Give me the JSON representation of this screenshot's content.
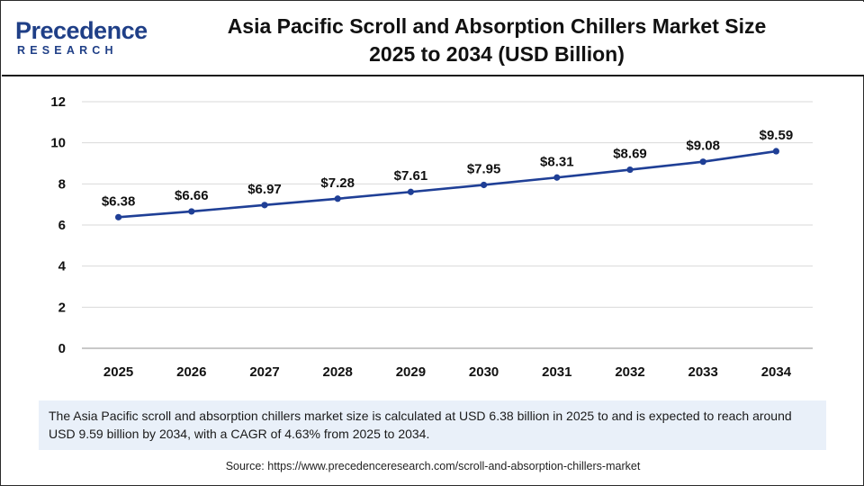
{
  "brand": {
    "name_top": "Precedence",
    "name_bottom": "RESEARCH",
    "color": "#1f3f87"
  },
  "header": {
    "title_line1": "Asia Pacific Scroll and Absorption Chillers Market Size",
    "title_line2": "2025 to 2034 (USD Billion)"
  },
  "chart_data": {
    "type": "line",
    "x": [
      "2025",
      "2026",
      "2027",
      "2028",
      "2029",
      "2030",
      "2031",
      "2032",
      "2033",
      "2034"
    ],
    "series": [
      {
        "values": [
          6.38,
          6.66,
          6.97,
          7.28,
          7.61,
          7.95,
          8.31,
          8.69,
          9.08,
          9.59
        ],
        "labels": [
          "$6.38",
          "$6.66",
          "$6.97",
          "$7.28",
          "$7.61",
          "$7.95",
          "$8.31",
          "$8.69",
          "$9.08",
          "$9.59"
        ],
        "color": "#1f3f96"
      }
    ],
    "yticks": [
      "0",
      "2",
      "4",
      "6",
      "8",
      "10",
      "12"
    ],
    "ylim": [
      0,
      12
    ],
    "grid": true,
    "legend": "none",
    "gridColor": "#d9d9d9"
  },
  "footer": {
    "description": "The Asia Pacific scroll and absorption chillers market size is calculated at USD 6.38 billion in 2025 to and is expected to reach around USD 9.59 billion by 2034, with a CAGR of 4.63% from 2025 to 2034.",
    "source": "Source: https://www.precedenceresearch.com/scroll-and-absorption-chillers-market"
  }
}
